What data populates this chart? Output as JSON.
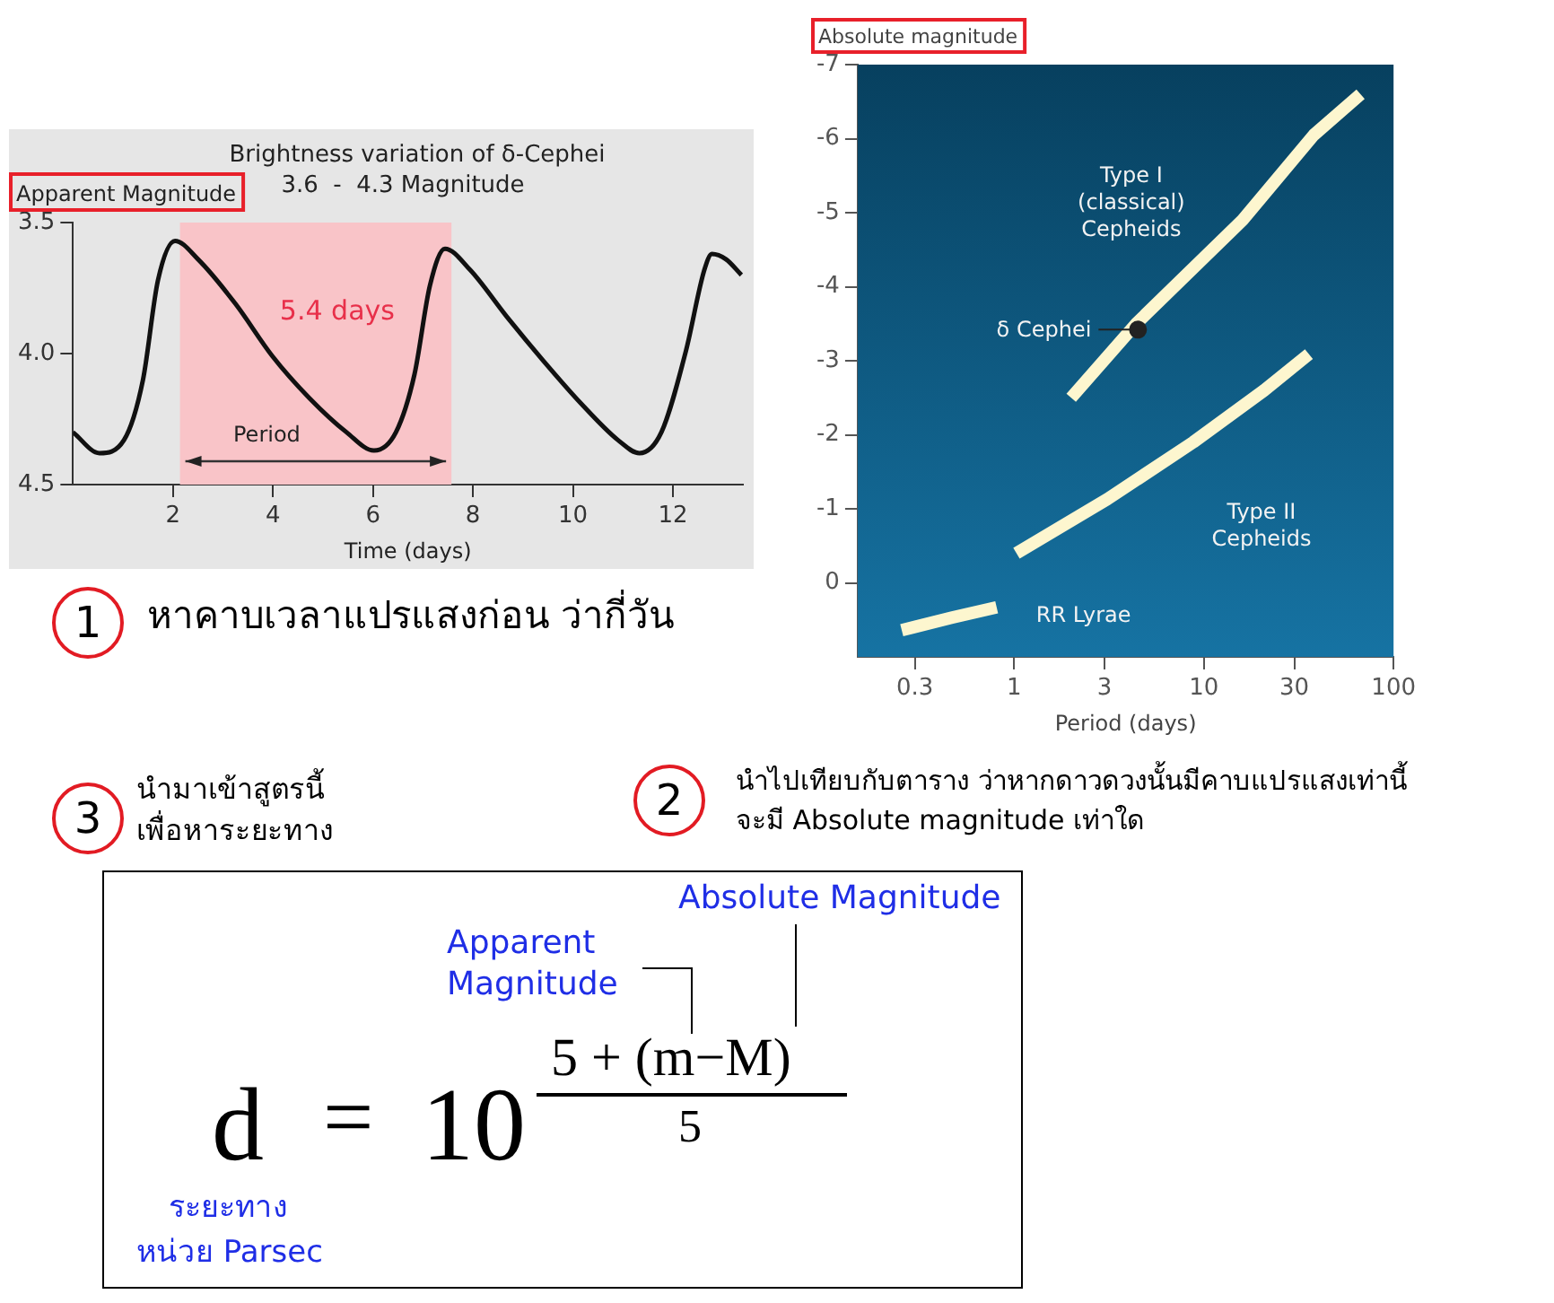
{
  "chart_data": [
    {
      "type": "line",
      "title": "Brightness variation of δ-Cephei",
      "subtitle": "3.6  -  4.3 Magnitude",
      "xlabel": "Time (days)",
      "ylabel": "Apparent Magnitude",
      "x": [
        0,
        0.53,
        1.02,
        1.4,
        1.7,
        2.04,
        2.5,
        3.25,
        3.99,
        4.73,
        5.47,
        6.02,
        6.46,
        6.83,
        7.14,
        7.44,
        7.94,
        8.68,
        9.42,
        10.16,
        10.9,
        11.33,
        11.77,
        12.26,
        12.63,
        12.78,
        13.06,
        13.37
      ],
      "series": [
        {
          "color": "#111111",
          "values": [
            4.3,
            4.38,
            4.33,
            4.1,
            3.72,
            3.57,
            3.64,
            3.81,
            4.01,
            4.17,
            4.3,
            4.37,
            4.3,
            4.08,
            3.74,
            3.6,
            3.68,
            3.86,
            4.03,
            4.19,
            4.33,
            4.38,
            4.3,
            3.99,
            3.68,
            3.62,
            3.64,
            3.7
          ]
        }
      ],
      "xlim": [
        0,
        13.4
      ],
      "xticks": [
        2,
        4,
        6,
        8,
        10,
        12
      ],
      "ylim": [
        4.5,
        3.5
      ],
      "yticks": [
        3.5,
        {
          "value": 4,
          "label": "4.0"
        },
        4.5
      ],
      "grid": false,
      "bands": [
        {
          "axis": "x",
          "from": 2.14,
          "to": 7.57,
          "label": "5.4 days",
          "color": "#f9c4c8"
        }
      ],
      "annotations": [
        "Period"
      ]
    },
    {
      "type": "line",
      "xlabel": "Period (days)",
      "ylabel": "Absolute magnitude",
      "log": "x",
      "series": [
        {
          "name": "Type I (classical) Cepheids",
          "color": "#fdf6cf",
          "x": [
            2,
            4.4,
            16,
            38,
            67
          ],
          "values": [
            -2.5,
            -3.5,
            -4.9,
            -6.05,
            -6.6
          ]
        },
        {
          "name": "Type II Cepheids",
          "color": "#fdf6cf",
          "x": [
            1.03,
            3.1,
            8.8,
            20.8,
            35.8
          ],
          "values": [
            -0.4,
            -1.13,
            -1.9,
            -2.6,
            -3.09
          ]
        },
        {
          "name": "RR Lyrae",
          "color": "#fdf6cf",
          "x": [
            0.256,
            0.47,
            0.81
          ],
          "values": [
            0.64,
            0.47,
            0.33
          ]
        },
        {
          "name": "δ Cephei",
          "type": "scatter",
          "color": "#222222",
          "x": [
            4.5
          ],
          "values": [
            -3.42
          ]
        }
      ],
      "xlim": [
        0.15,
        100
      ],
      "xticks": [
        0.3,
        1,
        3,
        10,
        30,
        100
      ],
      "ylim": [
        1,
        -7
      ],
      "yticks": [
        -7,
        -6,
        -5,
        -4,
        -3,
        -2,
        -1,
        0
      ],
      "grid": false
    },
    {
      "type": "other",
      "annotations": [
        "1",
        "หาคาบเวลาแปรแสงก่อน  ว่ากี่วัน",
        "2",
        "นำไปเทียบกับตาราง  ว่าหากดาวดวงนั้นมีคาบแปรแสงเท่านี้",
        "จะมี Absolute magnitude เท่าใด",
        "3",
        "นำมาเข้าสูตรนี้",
        "เพื่อหาระยะทาง",
        "Absolute Magnitude",
        "Apparent Magnitude",
        "d",
        "=",
        "10",
        "5 + (m−M)",
        "5",
        "ระยะทาง",
        "หน่วย Parsec"
      ]
    }
  ]
}
